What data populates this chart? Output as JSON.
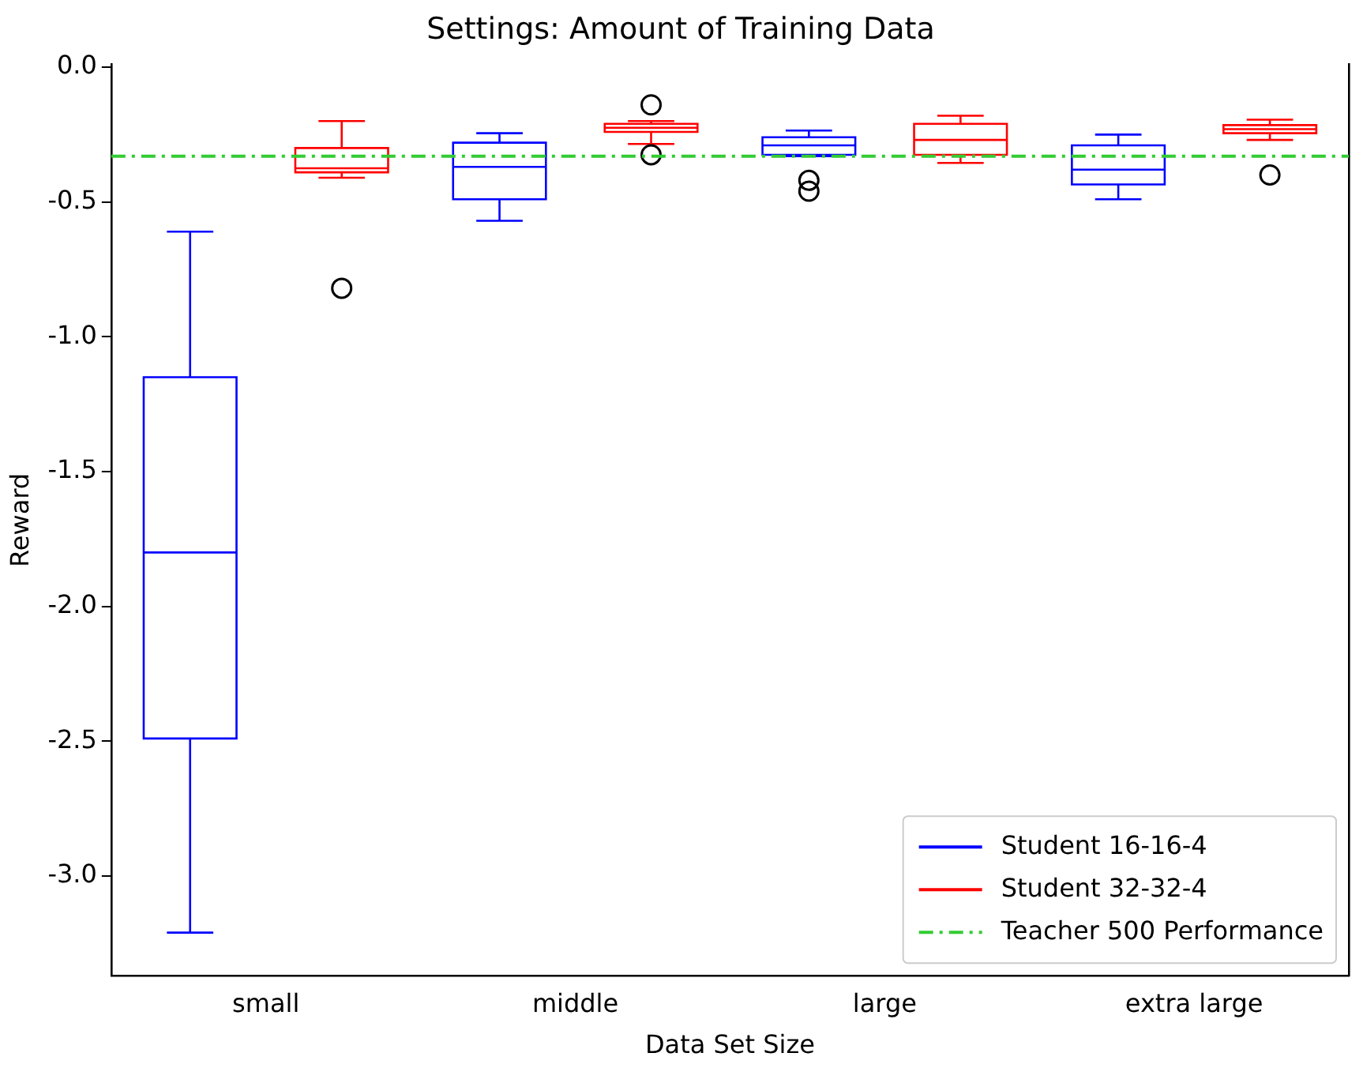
{
  "chart_data": {
    "type": "box",
    "title": "Settings: Amount of Training Data",
    "xlabel": "Data Set Size",
    "ylabel": "Reward",
    "categories": [
      "small",
      "middle",
      "large",
      "extra large"
    ],
    "series": [
      {
        "name": "Student 16-16-4",
        "color": "#0000ff",
        "boxes": [
          {
            "low": -3.21,
            "q1": -2.49,
            "median": -1.8,
            "q3": -1.15,
            "high": -0.61
          },
          {
            "low": -0.57,
            "q1": -0.49,
            "median": -0.37,
            "q3": -0.28,
            "high": -0.245
          },
          {
            "low": -0.33,
            "q1": -0.325,
            "median": -0.29,
            "q3": -0.26,
            "high": -0.235,
            "outliers": [
              -0.42,
              -0.46
            ]
          },
          {
            "low": -0.49,
            "q1": -0.435,
            "median": -0.38,
            "q3": -0.29,
            "high": -0.25
          }
        ]
      },
      {
        "name": "Student 32-32-4",
        "color": "#ff0000",
        "boxes": [
          {
            "low": -0.41,
            "q1": -0.39,
            "median": -0.375,
            "q3": -0.3,
            "high": -0.2,
            "outliers": [
              -0.82
            ]
          },
          {
            "low": -0.285,
            "q1": -0.24,
            "median": -0.225,
            "q3": -0.21,
            "high": -0.2,
            "outliers": [
              -0.14,
              -0.325
            ]
          },
          {
            "low": -0.355,
            "q1": -0.325,
            "median": -0.27,
            "q3": -0.21,
            "high": -0.18
          },
          {
            "low": -0.27,
            "q1": -0.245,
            "median": -0.23,
            "q3": -0.215,
            "high": -0.195,
            "outliers": [
              -0.4
            ]
          }
        ]
      }
    ],
    "ref_lines": [
      {
        "axis": "y",
        "value": -0.33,
        "label": "Teacher 500 Performance",
        "color": "#33cc33",
        "line_style": "dashed"
      }
    ],
    "ylim": [
      -3.37,
      0.01
    ],
    "yticks": [
      {
        "value": 0,
        "label": "0.0"
      },
      {
        "value": -0.5,
        "label": "-0.5"
      },
      {
        "value": -1,
        "label": "-1.0"
      },
      {
        "value": -1.5,
        "label": "-1.5"
      },
      {
        "value": -2,
        "label": "-2.0"
      },
      {
        "value": -2.5,
        "label": "-2.5"
      },
      {
        "value": -3,
        "label": "-3.0"
      }
    ],
    "grid": false,
    "legend": "bottom right"
  }
}
